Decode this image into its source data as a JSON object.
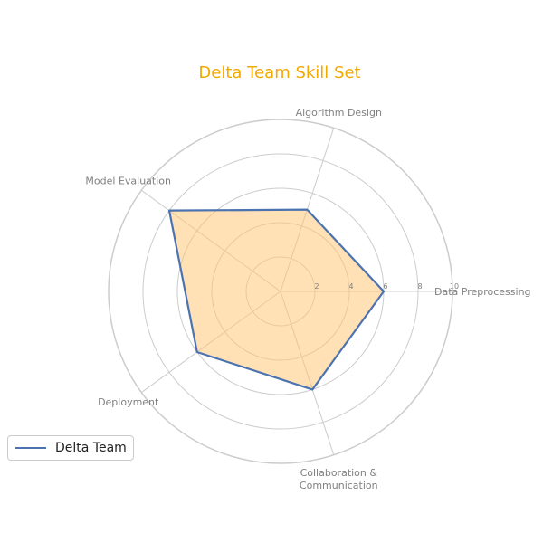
{
  "chart_data": {
    "type": "radar",
    "title": "Delta Team Skill Set",
    "axes": [
      "Data Preprocessing",
      "Algorithm Design",
      "Model Evaluation",
      "Deployment",
      "Collaboration &\nCommunication"
    ],
    "series": [
      {
        "name": "Delta Team",
        "values": [
          6,
          5,
          8,
          6,
          6
        ]
      }
    ],
    "rlim": [
      0,
      10
    ],
    "r_ticks": [
      2,
      4,
      6,
      8,
      10
    ],
    "grid": true,
    "legend_position": "lower-left"
  },
  "colors": {
    "title": "#f2a900",
    "line": "#4c72b0",
    "fill": "#ffc36b",
    "grid": "#cccccc",
    "label": "#808080"
  }
}
